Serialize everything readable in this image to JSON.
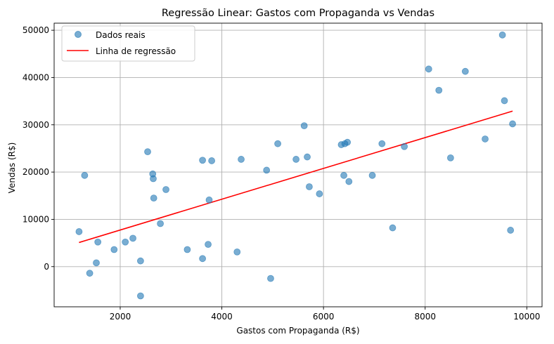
{
  "chart_data": {
    "type": "scatter",
    "title": "Regressão Linear: Gastos com Propaganda vs Vendas",
    "xlabel": "Gastos com Propaganda (R$)",
    "ylabel": "Vendas (R$)",
    "xlim": [
      700,
      10300
    ],
    "ylim": [
      -8500,
      51500
    ],
    "xticks": [
      2000,
      4000,
      6000,
      8000,
      10000
    ],
    "yticks": [
      0,
      10000,
      20000,
      30000,
      40000,
      50000
    ],
    "grid": true,
    "legend_position": "top-left",
    "colors": {
      "points": "#1f77b4",
      "line": "#ff0000",
      "grid": "#b0b0b0"
    },
    "series": [
      {
        "name": "Dados reais",
        "kind": "scatter",
        "points": [
          [
            1190,
            7400
          ],
          [
            1300,
            19300
          ],
          [
            1400,
            -1400
          ],
          [
            1530,
            800
          ],
          [
            1560,
            5200
          ],
          [
            1880,
            3600
          ],
          [
            2100,
            5200
          ],
          [
            2250,
            6000
          ],
          [
            2400,
            1200
          ],
          [
            2400,
            -6200
          ],
          [
            2540,
            24300
          ],
          [
            2640,
            19600
          ],
          [
            2650,
            18600
          ],
          [
            2660,
            14500
          ],
          [
            2790,
            9100
          ],
          [
            2900,
            16300
          ],
          [
            3320,
            3600
          ],
          [
            3620,
            22500
          ],
          [
            3620,
            1700
          ],
          [
            3730,
            4700
          ],
          [
            3750,
            14100
          ],
          [
            3800,
            22400
          ],
          [
            4300,
            3100
          ],
          [
            4380,
            22700
          ],
          [
            4880,
            20400
          ],
          [
            4960,
            -2500
          ],
          [
            5100,
            26000
          ],
          [
            5460,
            22700
          ],
          [
            5620,
            29800
          ],
          [
            5680,
            23200
          ],
          [
            5720,
            16900
          ],
          [
            5920,
            15400
          ],
          [
            6350,
            25800
          ],
          [
            6400,
            19300
          ],
          [
            6420,
            26000
          ],
          [
            6470,
            26300
          ],
          [
            6500,
            18000
          ],
          [
            6960,
            19300
          ],
          [
            7150,
            26000
          ],
          [
            7360,
            8200
          ],
          [
            7590,
            25400
          ],
          [
            8070,
            41800
          ],
          [
            8270,
            37300
          ],
          [
            8500,
            23000
          ],
          [
            8790,
            41300
          ],
          [
            9180,
            27000
          ],
          [
            9520,
            49000
          ],
          [
            9560,
            35100
          ],
          [
            9680,
            7700
          ],
          [
            9720,
            30200
          ]
        ]
      },
      {
        "name": "Linha de regressão",
        "kind": "line",
        "points": [
          [
            1190,
            5100
          ],
          [
            9720,
            32900
          ]
        ]
      }
    ]
  }
}
